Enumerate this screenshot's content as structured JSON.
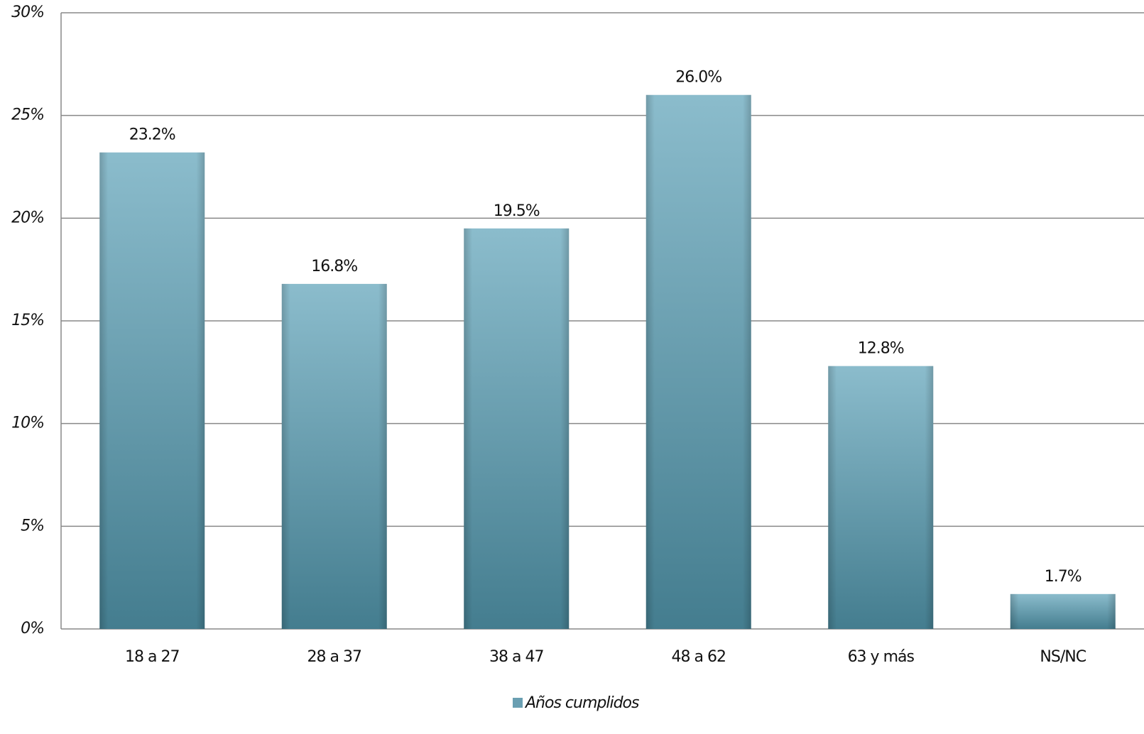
{
  "chart_data": {
    "type": "bar",
    "categories": [
      "18 a 27",
      "28 a 37",
      "38 a 47",
      "48 a 62",
      "63 y más",
      "NS/NC"
    ],
    "series": [
      {
        "name": "Años cumplidos",
        "color": "#6a9fb2",
        "values": [
          23.2,
          16.8,
          19.5,
          26.0,
          12.8,
          1.7
        ],
        "value_labels": [
          "23.2%",
          "16.8%",
          "19.5%",
          "26.0%",
          "12.8%",
          "1.7%"
        ]
      }
    ],
    "ylim": [
      0,
      30
    ],
    "yticks": [
      {
        "value": 0,
        "label": "0%"
      },
      {
        "value": 5,
        "label": "5%"
      },
      {
        "value": 10,
        "label": "10%"
      },
      {
        "value": 15,
        "label": "15%"
      },
      {
        "value": 20,
        "label": "20%"
      },
      {
        "value": 25,
        "label": "25%"
      },
      {
        "value": 30,
        "label": "30%"
      }
    ],
    "grid": true,
    "legend": "bottom"
  }
}
